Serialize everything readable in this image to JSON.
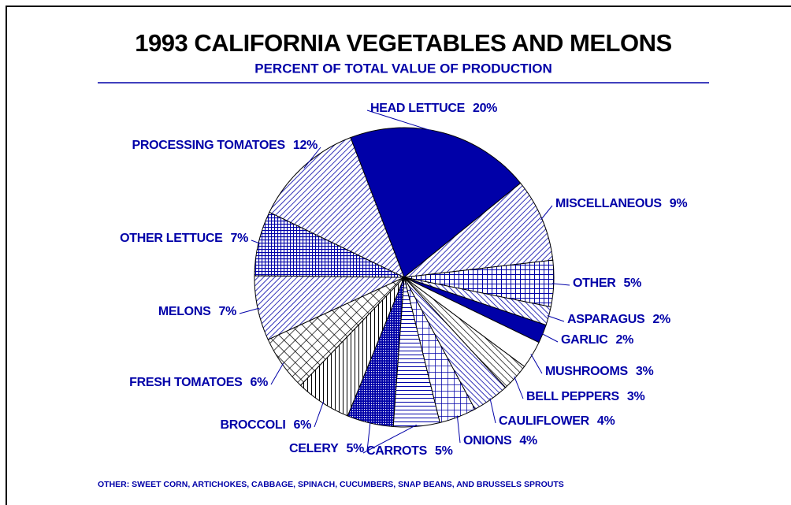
{
  "chart_data": {
    "type": "pie",
    "title": "1993 CALIFORNIA VEGETABLES AND MELONS",
    "subtitle": "PERCENT OF TOTAL VALUE OF PRODUCTION",
    "categories": [
      "HEAD LETTUCE",
      "MISCELLANEOUS",
      "OTHER",
      "ASPARAGUS",
      "GARLIC",
      "MUSHROOMS",
      "BELL PEPPERS",
      "CAULIFLOWER",
      "ONIONS",
      "CARROTS",
      "CELERY",
      "BROCCOLI",
      "FRESH TOMATOES",
      "MELONS",
      "OTHER LETTUCE",
      "PROCESSING TOMATOES"
    ],
    "values": [
      20,
      9,
      5,
      2,
      2,
      3,
      3,
      4,
      4,
      5,
      5,
      6,
      6,
      7,
      7,
      12
    ],
    "value_labels": [
      "20%",
      "9%",
      "5%",
      "2%",
      "2%",
      "3%",
      "3%",
      "4%",
      "4%",
      "5%",
      "5%",
      "6%",
      "6%",
      "7%",
      "7%",
      "12%"
    ],
    "color": "#0000a8",
    "footnote": "OTHER: SWEET CORN, ARTICHOKES, CABBAGE, SPINACH, CUCUMBERS, SNAP BEANS, AND BRUSSELS SPROUTS"
  }
}
